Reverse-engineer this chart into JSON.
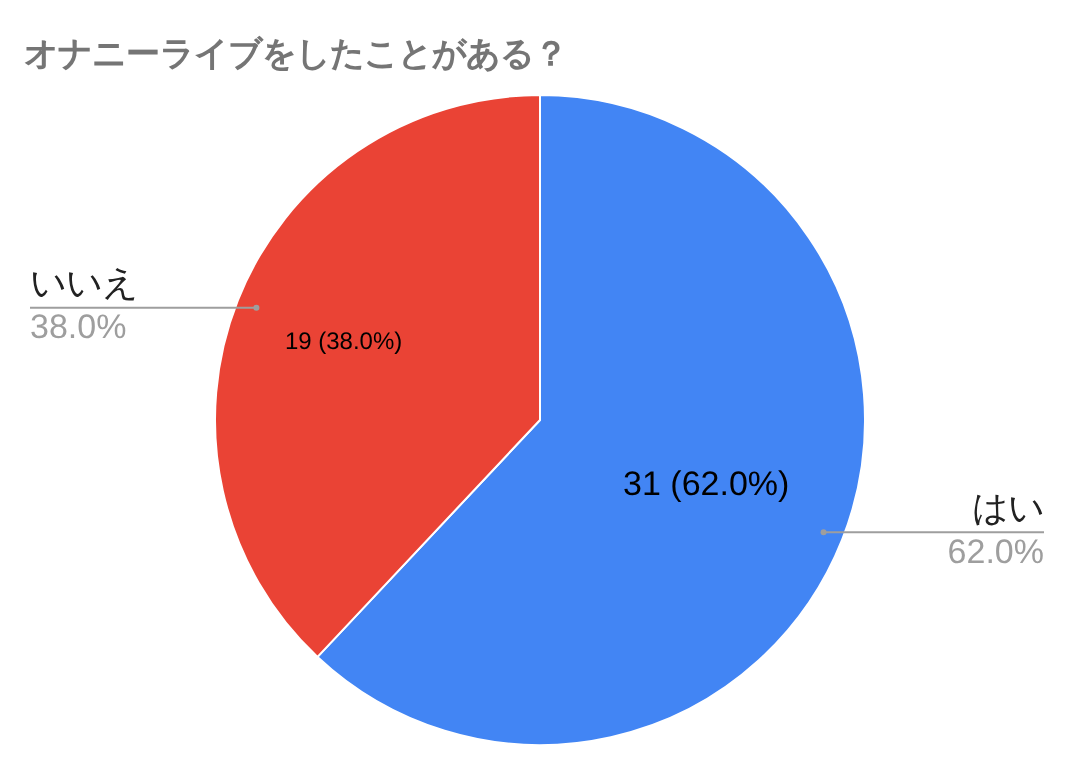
{
  "chart_data": {
    "type": "pie",
    "title": "オナニーライブをしたことがある？",
    "categories": [
      "はい",
      "いいえ"
    ],
    "values": [
      31,
      19
    ],
    "colors": [
      "#4285f4",
      "#ea4335"
    ],
    "value_labels": [
      "31 (62.0%)",
      "19 (38.0%)"
    ],
    "annotations": [
      "62.0%",
      "38.0%"
    ],
    "legend": false
  }
}
